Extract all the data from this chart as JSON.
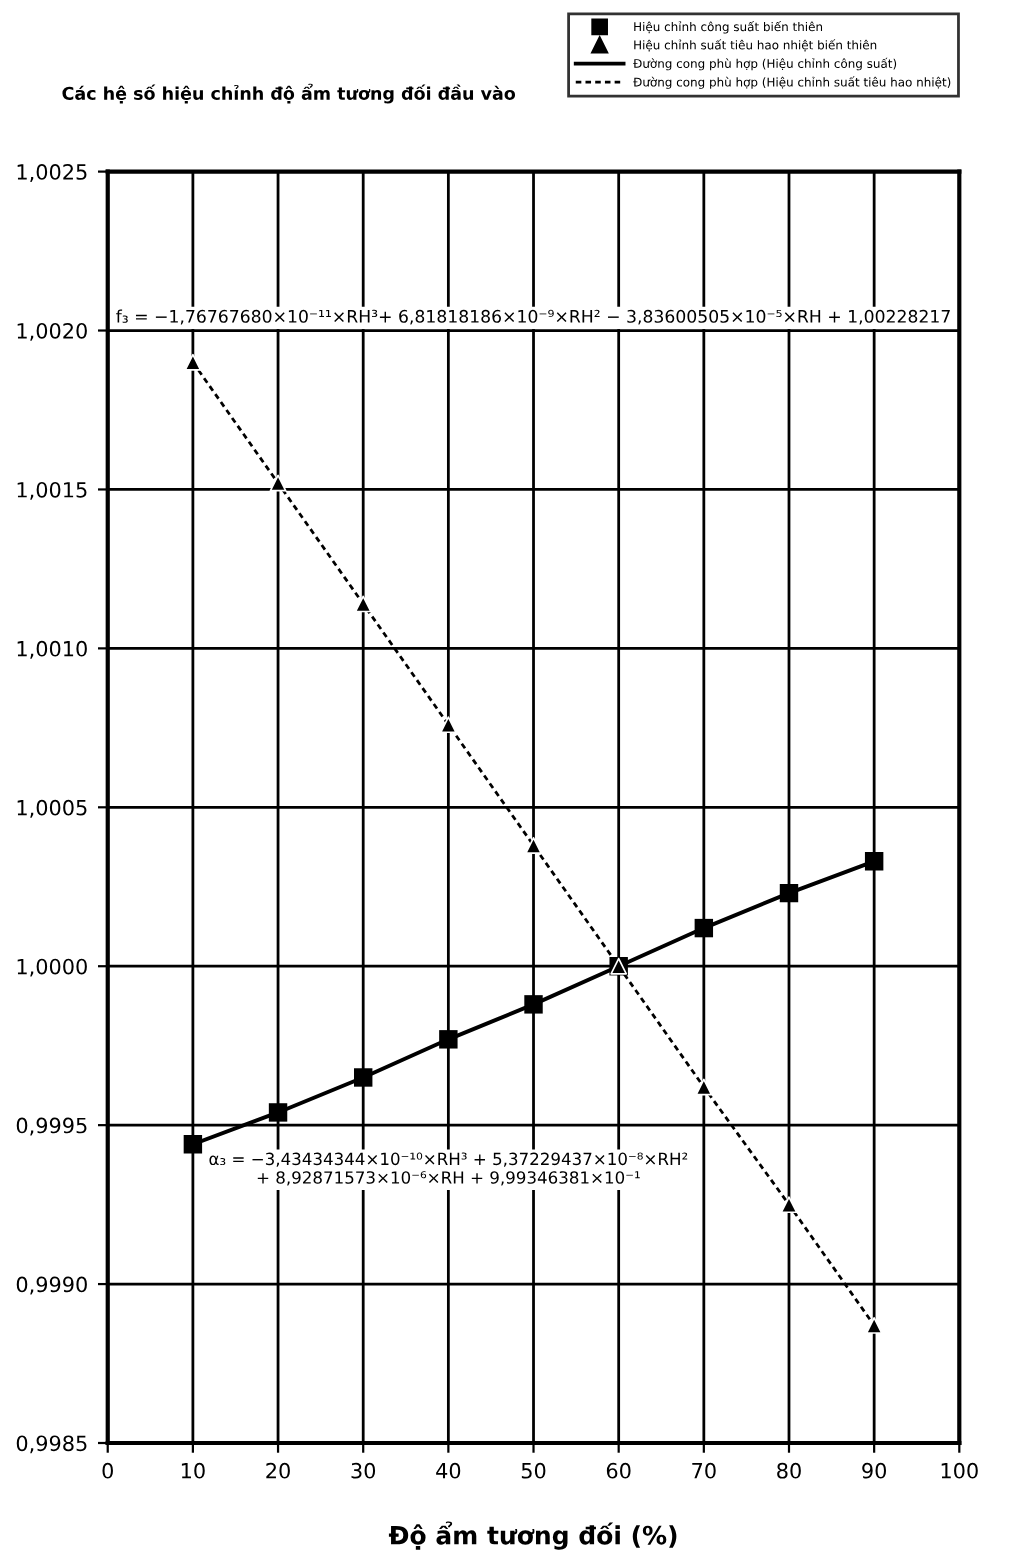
{
  "chart_data": {
    "type": "scatter",
    "title": "Các hệ số hiệu chỉnh độ ẩm tương đối đầu vào",
    "xlabel": "Độ ẩm tương đối (%)",
    "xlim": [
      0,
      100
    ],
    "xticks": [
      0,
      10,
      20,
      30,
      40,
      50,
      60,
      70,
      80,
      90,
      100
    ],
    "ylim": [
      0.9985,
      1.0025
    ],
    "yticks": [
      {
        "value": 0.9985,
        "label": "0,9985"
      },
      {
        "value": 0.999,
        "label": "0,9990"
      },
      {
        "value": 0.9995,
        "label": "0,9995"
      },
      {
        "value": 1.0,
        "label": "1,0000"
      },
      {
        "value": 1.0005,
        "label": "1,0005"
      },
      {
        "value": 1.001,
        "label": "1,0010"
      },
      {
        "value": 1.0015,
        "label": "1,0015"
      },
      {
        "value": 1.002,
        "label": "1,0020"
      },
      {
        "value": 1.0025,
        "label": "1,0025"
      }
    ],
    "grid": true,
    "legend": "top right",
    "annotations": [
      "f₃ = −1,76767680×10⁻¹¹×RH³+ 6,81818186×10⁻⁹×RH² − 3,83600505×10⁻⁵×RH + 1,00228217",
      "α₃ = −3,43434344×10⁻¹⁰×RH³ + 5,37229437×10⁻⁸×RH²\n+ 8,92871573×10⁻⁶×RH + 9,99346381×10⁻¹"
    ],
    "series": [
      {
        "name": "Hiệu chỉnh công suất biến thiên",
        "marker": "square",
        "color": "#000000",
        "x": [
          10,
          20,
          30,
          40,
          50,
          60,
          70,
          80,
          90
        ],
        "values": [
          0.99944,
          0.99954,
          0.99965,
          0.99977,
          0.99988,
          1.0,
          1.00012,
          1.00023,
          1.00033
        ]
      },
      {
        "name": "Hiệu chỉnh suất tiêu hao nhiệt biến thiên",
        "marker": "triangle",
        "color": "#000000",
        "x": [
          10,
          20,
          30,
          40,
          50,
          60,
          70,
          80,
          90
        ],
        "values": [
          1.0019,
          1.00152,
          1.00114,
          1.00076,
          1.00038,
          1.0,
          0.99962,
          0.99925,
          0.99887
        ]
      },
      {
        "name": "Đường cong phù hợp (Hiệu chỉnh công suất)",
        "type": "line",
        "line_style": "solid",
        "color": "#000000",
        "x": [
          10,
          20,
          30,
          40,
          50,
          60,
          70,
          80,
          90
        ],
        "values": [
          0.99944,
          0.99954,
          0.99965,
          0.99977,
          0.99988,
          1.0,
          1.00012,
          1.00023,
          1.00033
        ]
      },
      {
        "name": "Đường cong phù hợp (Hiệu chỉnh suất tiêu hao nhiệt)",
        "type": "line",
        "line_style": "dashed",
        "color": "#000000",
        "x": [
          10,
          20,
          30,
          40,
          50,
          60,
          70,
          80,
          90
        ],
        "values": [
          1.0019,
          1.00152,
          1.00114,
          1.00076,
          1.00038,
          1.0,
          0.99962,
          0.99925,
          0.99887
        ]
      }
    ]
  }
}
